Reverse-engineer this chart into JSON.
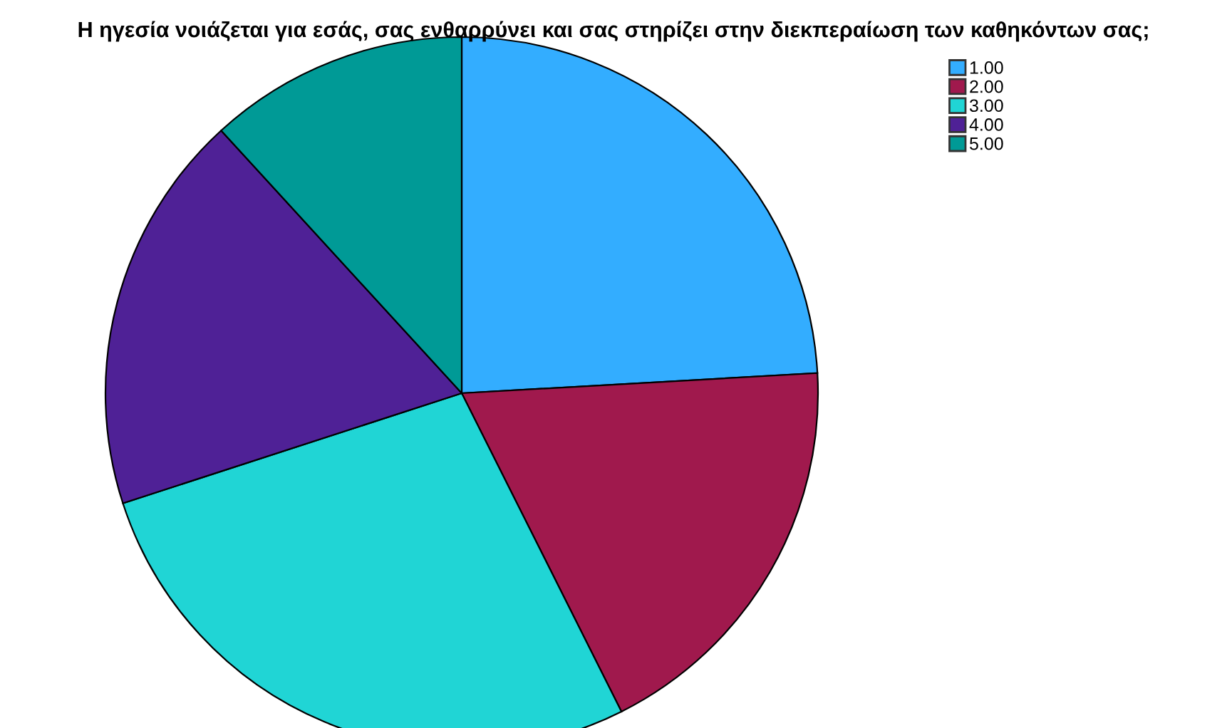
{
  "chart_data": {
    "type": "pie",
    "title": "Η ηγεσία νοιάζεται για εσάς, σας ενθαρρύνει και σας στηρίζει στην διεκπεραίωση των καθηκόντων σας;",
    "categories": [
      "1.00",
      "2.00",
      "3.00",
      "4.00",
      "5.00"
    ],
    "values": [
      24.1,
      18.5,
      27.4,
      18.2,
      11.8
    ],
    "colors": [
      "#33adff",
      "#a0194d",
      "#20d5d5",
      "#4f2196",
      "#009a96"
    ],
    "legend": "top right"
  }
}
